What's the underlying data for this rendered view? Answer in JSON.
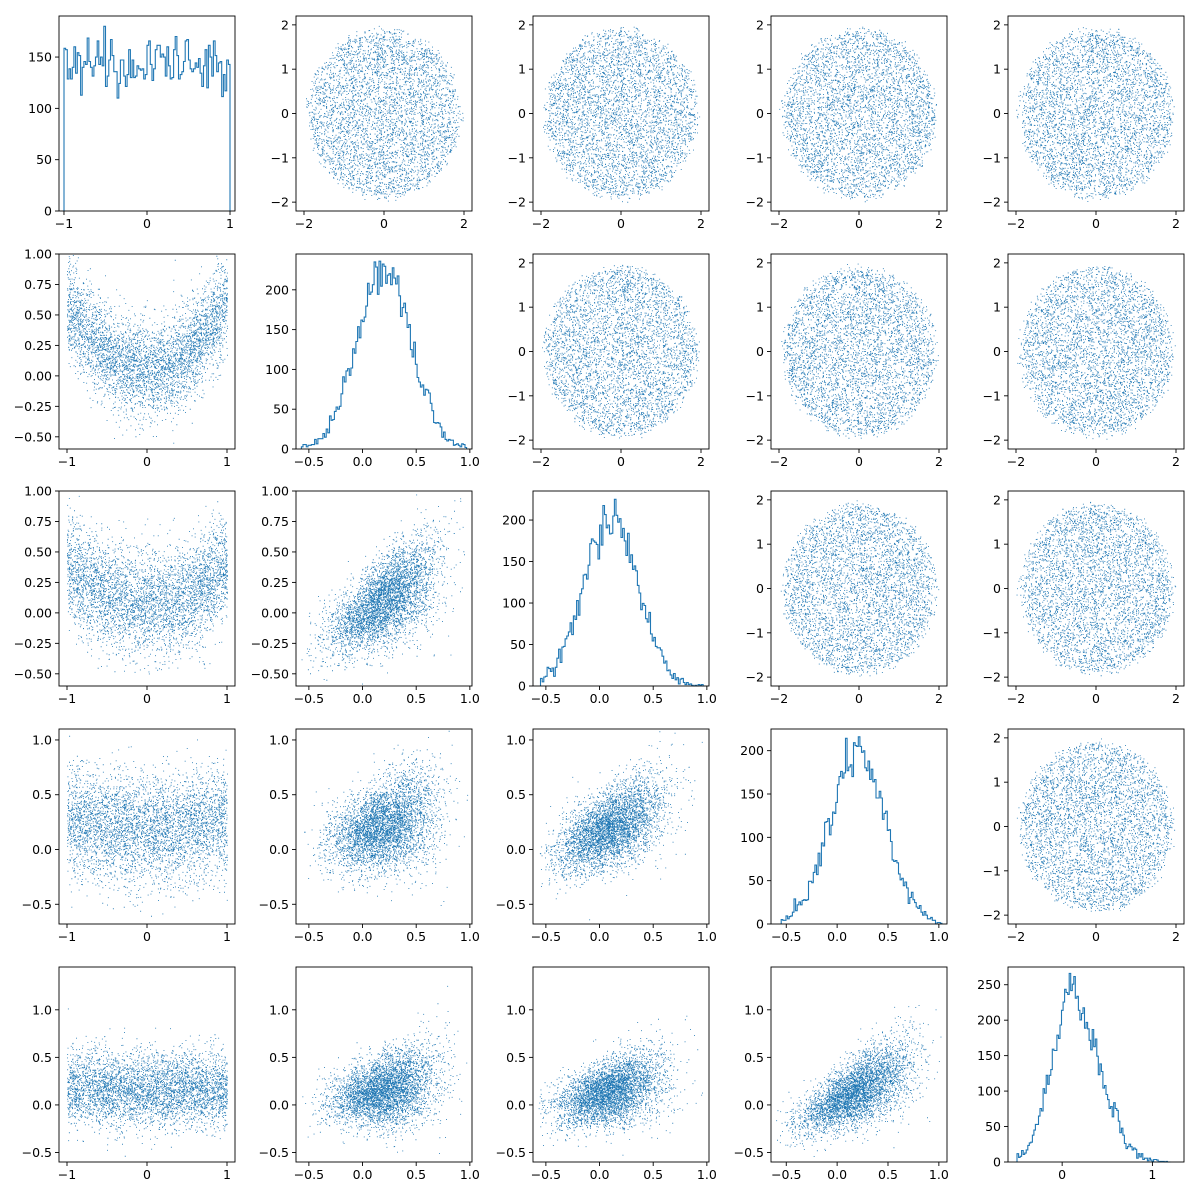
{
  "figure": {
    "type": "pairplot",
    "background": "#ffffff",
    "series_color": "#1f77b4",
    "grid": false,
    "legend": "none"
  },
  "chart_data": [
    {
      "type": "histogram",
      "row": 0,
      "col": 0,
      "xlim": [
        -1.06,
        1.06
      ],
      "ylim": [
        0,
        190
      ],
      "xticks": [
        -1,
        0,
        1
      ],
      "yticks": [
        0,
        50,
        100,
        150
      ],
      "dist": {
        "kind": "uniform",
        "min": -1,
        "max": 1
      },
      "peak_count": 180,
      "bins": 100
    },
    {
      "type": "scatter",
      "row": 0,
      "col": 1,
      "xlim": [
        -2.2,
        2.2
      ],
      "ylim": [
        -2.2,
        2.2
      ],
      "xticks": [
        -2,
        0,
        2
      ],
      "yticks": [
        -2,
        -1,
        0,
        1,
        2
      ],
      "dist": {
        "kind": "disk",
        "radius": 2
      }
    },
    {
      "type": "scatter",
      "row": 0,
      "col": 2,
      "xlim": [
        -2.2,
        2.2
      ],
      "ylim": [
        -2.2,
        2.2
      ],
      "xticks": [
        -2,
        0,
        2
      ],
      "yticks": [
        -2,
        -1,
        0,
        1,
        2
      ],
      "dist": {
        "kind": "disk",
        "radius": 2
      }
    },
    {
      "type": "scatter",
      "row": 0,
      "col": 3,
      "xlim": [
        -2.2,
        2.2
      ],
      "ylim": [
        -2.2,
        2.2
      ],
      "xticks": [
        -2,
        0,
        2
      ],
      "yticks": [
        -2,
        -1,
        0,
        1,
        2
      ],
      "dist": {
        "kind": "disk",
        "radius": 2
      }
    },
    {
      "type": "scatter",
      "row": 0,
      "col": 4,
      "xlim": [
        -2.2,
        2.2
      ],
      "ylim": [
        -2.2,
        2.2
      ],
      "xticks": [
        -2,
        0,
        2
      ],
      "yticks": [
        -2,
        -1,
        0,
        1,
        2
      ],
      "dist": {
        "kind": "disk",
        "radius": 2
      }
    },
    {
      "type": "scatter",
      "row": 1,
      "col": 0,
      "xlim": [
        -1.1,
        1.1
      ],
      "ylim": [
        -0.6,
        1.0
      ],
      "xticks": [
        -1,
        0,
        1
      ],
      "yticks": [
        -0.5,
        -0.25,
        0.0,
        0.25,
        0.5,
        0.75,
        1.0
      ],
      "ytick_labels": [
        "−0.50",
        "−0.25",
        "0.00",
        "0.25",
        "0.50",
        "0.75",
        "1.00"
      ],
      "dist": {
        "kind": "parabola",
        "a": 0.55,
        "b": 0,
        "c": 0.05,
        "sd": 0.22
      }
    },
    {
      "type": "histogram",
      "row": 1,
      "col": 1,
      "xlim": [
        -0.62,
        1.02
      ],
      "ylim": [
        0,
        245
      ],
      "xticks": [
        -0.5,
        0,
        0.5,
        1.0
      ],
      "xtick_labels": [
        "−0.5",
        "0.0",
        "0.5",
        "1.0"
      ],
      "yticks": [
        0,
        50,
        100,
        150,
        200
      ],
      "dist": {
        "kind": "normal",
        "mean": 0.2,
        "sd": 0.25,
        "min": -0.57,
        "max": 0.97
      },
      "peak_count": 236,
      "bins": 100
    },
    {
      "type": "scatter",
      "row": 1,
      "col": 2,
      "xlim": [
        -2.2,
        2.2
      ],
      "ylim": [
        -2.2,
        2.2
      ],
      "xticks": [
        -2,
        0,
        2
      ],
      "yticks": [
        -2,
        -1,
        0,
        1,
        2
      ],
      "dist": {
        "kind": "disk",
        "radius": 2
      }
    },
    {
      "type": "scatter",
      "row": 1,
      "col": 3,
      "xlim": [
        -2.2,
        2.2
      ],
      "ylim": [
        -2.2,
        2.2
      ],
      "xticks": [
        -2,
        0,
        2
      ],
      "yticks": [
        -2,
        -1,
        0,
        1,
        2
      ],
      "dist": {
        "kind": "disk",
        "radius": 2
      }
    },
    {
      "type": "scatter",
      "row": 1,
      "col": 4,
      "xlim": [
        -2.2,
        2.2
      ],
      "ylim": [
        -2.2,
        2.2
      ],
      "xticks": [
        -2,
        0,
        2
      ],
      "yticks": [
        -2,
        -1,
        0,
        1,
        2
      ],
      "dist": {
        "kind": "disk",
        "radius": 2
      }
    },
    {
      "type": "scatter",
      "row": 2,
      "col": 0,
      "xlim": [
        -1.1,
        1.1
      ],
      "ylim": [
        -0.6,
        1.0
      ],
      "xticks": [
        -1,
        0,
        1
      ],
      "yticks": [
        -0.5,
        -0.25,
        0.0,
        0.25,
        0.5,
        0.75,
        1.0
      ],
      "ytick_labels": [
        "−0.50",
        "−0.25",
        "0.00",
        "0.25",
        "0.50",
        "0.75",
        "1.00"
      ],
      "dist": {
        "kind": "parabola",
        "a": 0.3,
        "b": 0,
        "c": 0.07,
        "sd": 0.24
      }
    },
    {
      "type": "scatter",
      "row": 2,
      "col": 1,
      "xlim": [
        -0.62,
        1.02
      ],
      "ylim": [
        -0.6,
        1.0
      ],
      "xticks": [
        -0.5,
        0,
        0.5,
        1.0
      ],
      "xtick_labels": [
        "−0.5",
        "0.0",
        "0.5",
        "1.0"
      ],
      "yticks": [
        -0.5,
        -0.25,
        0.0,
        0.25,
        0.5,
        0.75,
        1.0
      ],
      "ytick_labels": [
        "−0.50",
        "−0.25",
        "0.00",
        "0.25",
        "0.50",
        "0.75",
        "1.00"
      ],
      "dist": {
        "kind": "fan",
        "xmean": 0.2,
        "xsd": 0.25,
        "slope": 0.55,
        "x0": 0.15,
        "y0": 0.07,
        "sd0": 0.19,
        "sdk": 0.05
      }
    },
    {
      "type": "histogram",
      "row": 2,
      "col": 2,
      "xlim": [
        -0.62,
        1.02
      ],
      "ylim": [
        0,
        235
      ],
      "xticks": [
        -0.5,
        0,
        0.5,
        1.0
      ],
      "xtick_labels": [
        "−0.5",
        "0.0",
        "0.5",
        "1.0"
      ],
      "yticks": [
        0,
        50,
        100,
        150,
        200
      ],
      "dist": {
        "kind": "normal",
        "mean": 0.1,
        "sd": 0.25,
        "min": -0.55,
        "max": 0.98
      },
      "peak_count": 225,
      "bins": 100
    },
    {
      "type": "scatter",
      "row": 2,
      "col": 3,
      "xlim": [
        -2.2,
        2.2
      ],
      "ylim": [
        -2.2,
        2.2
      ],
      "xticks": [
        -2,
        0,
        2
      ],
      "yticks": [
        -2,
        -1,
        0,
        1,
        2
      ],
      "dist": {
        "kind": "disk",
        "radius": 2
      }
    },
    {
      "type": "scatter",
      "row": 2,
      "col": 4,
      "xlim": [
        -2.2,
        2.2
      ],
      "ylim": [
        -2.2,
        2.2
      ],
      "xticks": [
        -2,
        0,
        2
      ],
      "yticks": [
        -2,
        -1,
        0,
        1,
        2
      ],
      "dist": {
        "kind": "disk",
        "radius": 2
      }
    },
    {
      "type": "scatter",
      "row": 3,
      "col": 0,
      "xlim": [
        -1.1,
        1.1
      ],
      "ylim": [
        -0.68,
        1.1
      ],
      "xticks": [
        -1,
        0,
        1
      ],
      "yticks": [
        -0.5,
        0.0,
        0.5,
        1.0
      ],
      "ytick_labels": [
        "−0.5",
        "0.0",
        "0.5",
        "1.0"
      ],
      "dist": {
        "kind": "parabola",
        "a": 0.1,
        "b": 0,
        "c": 0.18,
        "sd": 0.28
      }
    },
    {
      "type": "scatter",
      "row": 3,
      "col": 1,
      "xlim": [
        -0.62,
        1.02
      ],
      "ylim": [
        -0.68,
        1.1
      ],
      "xticks": [
        -0.5,
        0,
        0.5,
        1.0
      ],
      "xtick_labels": [
        "−0.5",
        "0.0",
        "0.5",
        "1.0"
      ],
      "yticks": [
        -0.5,
        0.0,
        0.5,
        1.0
      ],
      "ytick_labels": [
        "−0.5",
        "0.0",
        "0.5",
        "1.0"
      ],
      "dist": {
        "kind": "fan",
        "xmean": 0.2,
        "xsd": 0.25,
        "slope": 0.3,
        "x0": 0.15,
        "y0": 0.2,
        "sd0": 0.22,
        "sdk": 0.04
      }
    },
    {
      "type": "scatter",
      "row": 3,
      "col": 2,
      "xlim": [
        -0.62,
        1.02
      ],
      "ylim": [
        -0.68,
        1.1
      ],
      "xticks": [
        -0.5,
        0,
        0.5,
        1.0
      ],
      "xtick_labels": [
        "−0.5",
        "0.0",
        "0.5",
        "1.0"
      ],
      "yticks": [
        -0.5,
        0.0,
        0.5,
        1.0
      ],
      "ytick_labels": [
        "−0.5",
        "0.0",
        "0.5",
        "1.0"
      ],
      "dist": {
        "kind": "fan",
        "xmean": 0.1,
        "xsd": 0.25,
        "slope": 0.45,
        "x0": 0.1,
        "y0": 0.2,
        "sd0": 0.2,
        "sdk": 0.05
      }
    },
    {
      "type": "histogram",
      "row": 3,
      "col": 3,
      "xlim": [
        -0.65,
        1.08
      ],
      "ylim": [
        0,
        225
      ],
      "xticks": [
        -0.5,
        0,
        0.5,
        1.0
      ],
      "xtick_labels": [
        "−0.5",
        "0.0",
        "0.5",
        "1.0"
      ],
      "yticks": [
        0,
        50,
        100,
        150,
        200
      ],
      "dist": {
        "kind": "normal",
        "mean": 0.2,
        "sd": 0.27,
        "min": -0.55,
        "max": 1.03
      },
      "peak_count": 216,
      "bins": 100
    },
    {
      "type": "scatter",
      "row": 3,
      "col": 4,
      "xlim": [
        -2.2,
        2.2
      ],
      "ylim": [
        -2.2,
        2.2
      ],
      "xticks": [
        -2,
        0,
        2
      ],
      "yticks": [
        -2,
        -1,
        0,
        1,
        2
      ],
      "dist": {
        "kind": "disk",
        "radius": 2
      }
    },
    {
      "type": "scatter",
      "row": 4,
      "col": 0,
      "xlim": [
        -1.1,
        1.1
      ],
      "ylim": [
        -0.6,
        1.45
      ],
      "xticks": [
        -1,
        0,
        1
      ],
      "yticks": [
        -0.5,
        0.0,
        0.5,
        1.0
      ],
      "ytick_labels": [
        "−0.5",
        "0.0",
        "0.5",
        "1.0"
      ],
      "dist": {
        "kind": "parabola",
        "a": 0.05,
        "b": 0,
        "c": 0.15,
        "sd": 0.22
      }
    },
    {
      "type": "scatter",
      "row": 4,
      "col": 1,
      "xlim": [
        -0.62,
        1.02
      ],
      "ylim": [
        -0.6,
        1.45
      ],
      "xticks": [
        -0.5,
        0,
        0.5,
        1.0
      ],
      "xtick_labels": [
        "−0.5",
        "0.0",
        "0.5",
        "1.0"
      ],
      "yticks": [
        -0.5,
        0.0,
        0.5,
        1.0
      ],
      "ytick_labels": [
        "−0.5",
        "0.0",
        "0.5",
        "1.0"
      ],
      "dist": {
        "kind": "fan",
        "xmean": 0.2,
        "xsd": 0.25,
        "slope": 0.25,
        "x0": 0.15,
        "y0": 0.15,
        "sd0": 0.2,
        "sdk": 0.05
      }
    },
    {
      "type": "scatter",
      "row": 4,
      "col": 2,
      "xlim": [
        -0.62,
        1.02
      ],
      "ylim": [
        -0.6,
        1.45
      ],
      "xticks": [
        -0.5,
        0,
        0.5,
        1.0
      ],
      "xtick_labels": [
        "−0.5",
        "0.0",
        "0.5",
        "1.0"
      ],
      "yticks": [
        -0.5,
        0.0,
        0.5,
        1.0
      ],
      "ytick_labels": [
        "−0.5",
        "0.0",
        "0.5",
        "1.0"
      ],
      "dist": {
        "kind": "fan",
        "xmean": 0.1,
        "xsd": 0.25,
        "slope": 0.35,
        "x0": 0.1,
        "y0": 0.15,
        "sd0": 0.19,
        "sdk": 0.06
      }
    },
    {
      "type": "scatter",
      "row": 4,
      "col": 3,
      "xlim": [
        -0.65,
        1.08
      ],
      "ylim": [
        -0.6,
        1.45
      ],
      "xticks": [
        -0.5,
        0,
        0.5,
        1.0
      ],
      "xtick_labels": [
        "−0.5",
        "0.0",
        "0.5",
        "1.0"
      ],
      "yticks": [
        -0.5,
        0.0,
        0.5,
        1.0
      ],
      "ytick_labels": [
        "−0.5",
        "0.0",
        "0.5",
        "1.0"
      ],
      "dist": {
        "kind": "fan",
        "xmean": 0.2,
        "xsd": 0.27,
        "slope": 0.55,
        "x0": 0.2,
        "y0": 0.15,
        "sd0": 0.18,
        "sdk": 0.07
      }
    },
    {
      "type": "histogram",
      "row": 4,
      "col": 4,
      "xlim": [
        -0.6,
        1.35
      ],
      "ylim": [
        0,
        275
      ],
      "xticks": [
        0,
        1
      ],
      "yticks": [
        0,
        50,
        100,
        150,
        200,
        250
      ],
      "dist": {
        "kind": "skewnormal",
        "mean": 0.15,
        "sd": 0.25,
        "min": -0.5,
        "max": 1.2
      },
      "peak_count": 266,
      "bins": 100
    }
  ]
}
